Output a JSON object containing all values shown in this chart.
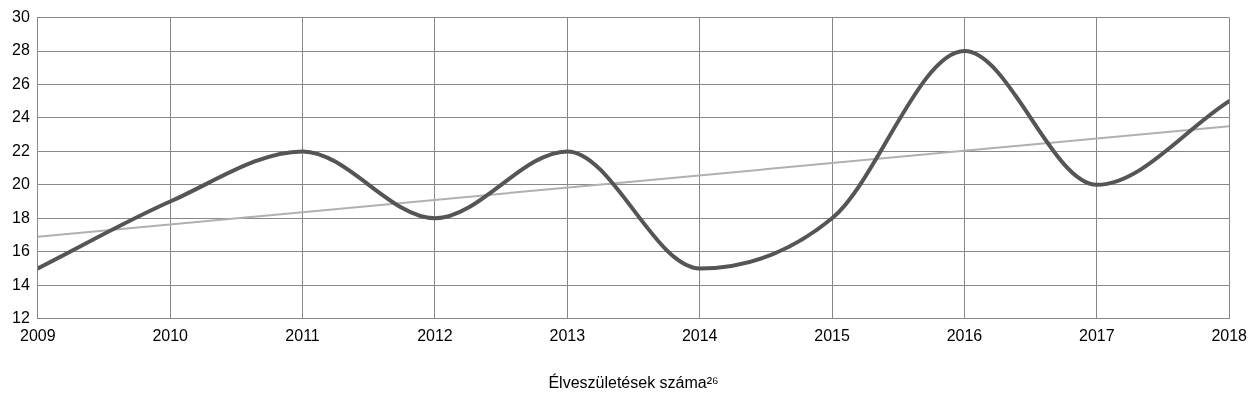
{
  "chart_data": {
    "type": "line",
    "xlabel": "Élveszületések száma²⁶",
    "x": [
      2009,
      2010,
      2011,
      2012,
      2013,
      2014,
      2015,
      2016,
      2017,
      2018
    ],
    "series": [
      {
        "color": "#555555",
        "values": [
          15,
          19,
          22,
          18,
          22,
          15,
          18,
          28,
          20,
          25
        ]
      },
      {
        "type": "line",
        "color": "#b0b0b0",
        "x": [
          2009,
          2018
        ],
        "values": [
          16.9,
          23.5
        ]
      }
    ],
    "xlim": [
      2009,
      2018
    ],
    "xticks": [
      2009,
      2010,
      2011,
      2012,
      2013,
      2014,
      2015,
      2016,
      2017,
      2018
    ],
    "ylim": [
      12,
      30
    ],
    "yticks": [
      12,
      14,
      16,
      18,
      20,
      22,
      24,
      26,
      28,
      30
    ],
    "grid": true,
    "legend": false,
    "marker": "none",
    "line_style": "solid"
  }
}
